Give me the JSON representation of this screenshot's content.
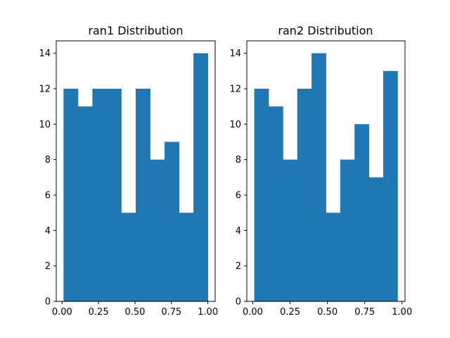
{
  "chart_data": [
    {
      "type": "bar",
      "title": "ran1 Distribution",
      "xlabel": "",
      "ylabel": "",
      "bin_edges": [
        0.01,
        0.109,
        0.208,
        0.307,
        0.406,
        0.505,
        0.604,
        0.703,
        0.802,
        0.901,
        1.0
      ],
      "values": [
        12,
        11,
        12,
        12,
        5,
        12,
        8,
        9,
        5,
        14
      ],
      "xlim": [
        -0.04,
        1.05
      ],
      "ylim": [
        0,
        14.7
      ],
      "xticks": [
        "0.00",
        "0.25",
        "0.50",
        "0.75",
        "1.00"
      ],
      "yticks": [
        "0",
        "2",
        "4",
        "6",
        "8",
        "10",
        "12",
        "14"
      ],
      "color": "#1f77b4",
      "grid": false
    },
    {
      "type": "bar",
      "title": "ran2 Distribution",
      "xlabel": "",
      "ylabel": "",
      "bin_edges": [
        0.01,
        0.106,
        0.202,
        0.298,
        0.394,
        0.49,
        0.586,
        0.682,
        0.778,
        0.874,
        0.97
      ],
      "values": [
        12,
        11,
        8,
        12,
        14,
        5,
        8,
        10,
        7,
        13
      ],
      "xlim": [
        -0.04,
        1.02
      ],
      "ylim": [
        0,
        14.7
      ],
      "xticks": [
        "0.00",
        "0.25",
        "0.50",
        "0.75",
        "1.00"
      ],
      "yticks": [
        "0",
        "2",
        "4",
        "6",
        "8",
        "10",
        "12",
        "14"
      ],
      "color": "#1f77b4",
      "grid": false
    }
  ]
}
